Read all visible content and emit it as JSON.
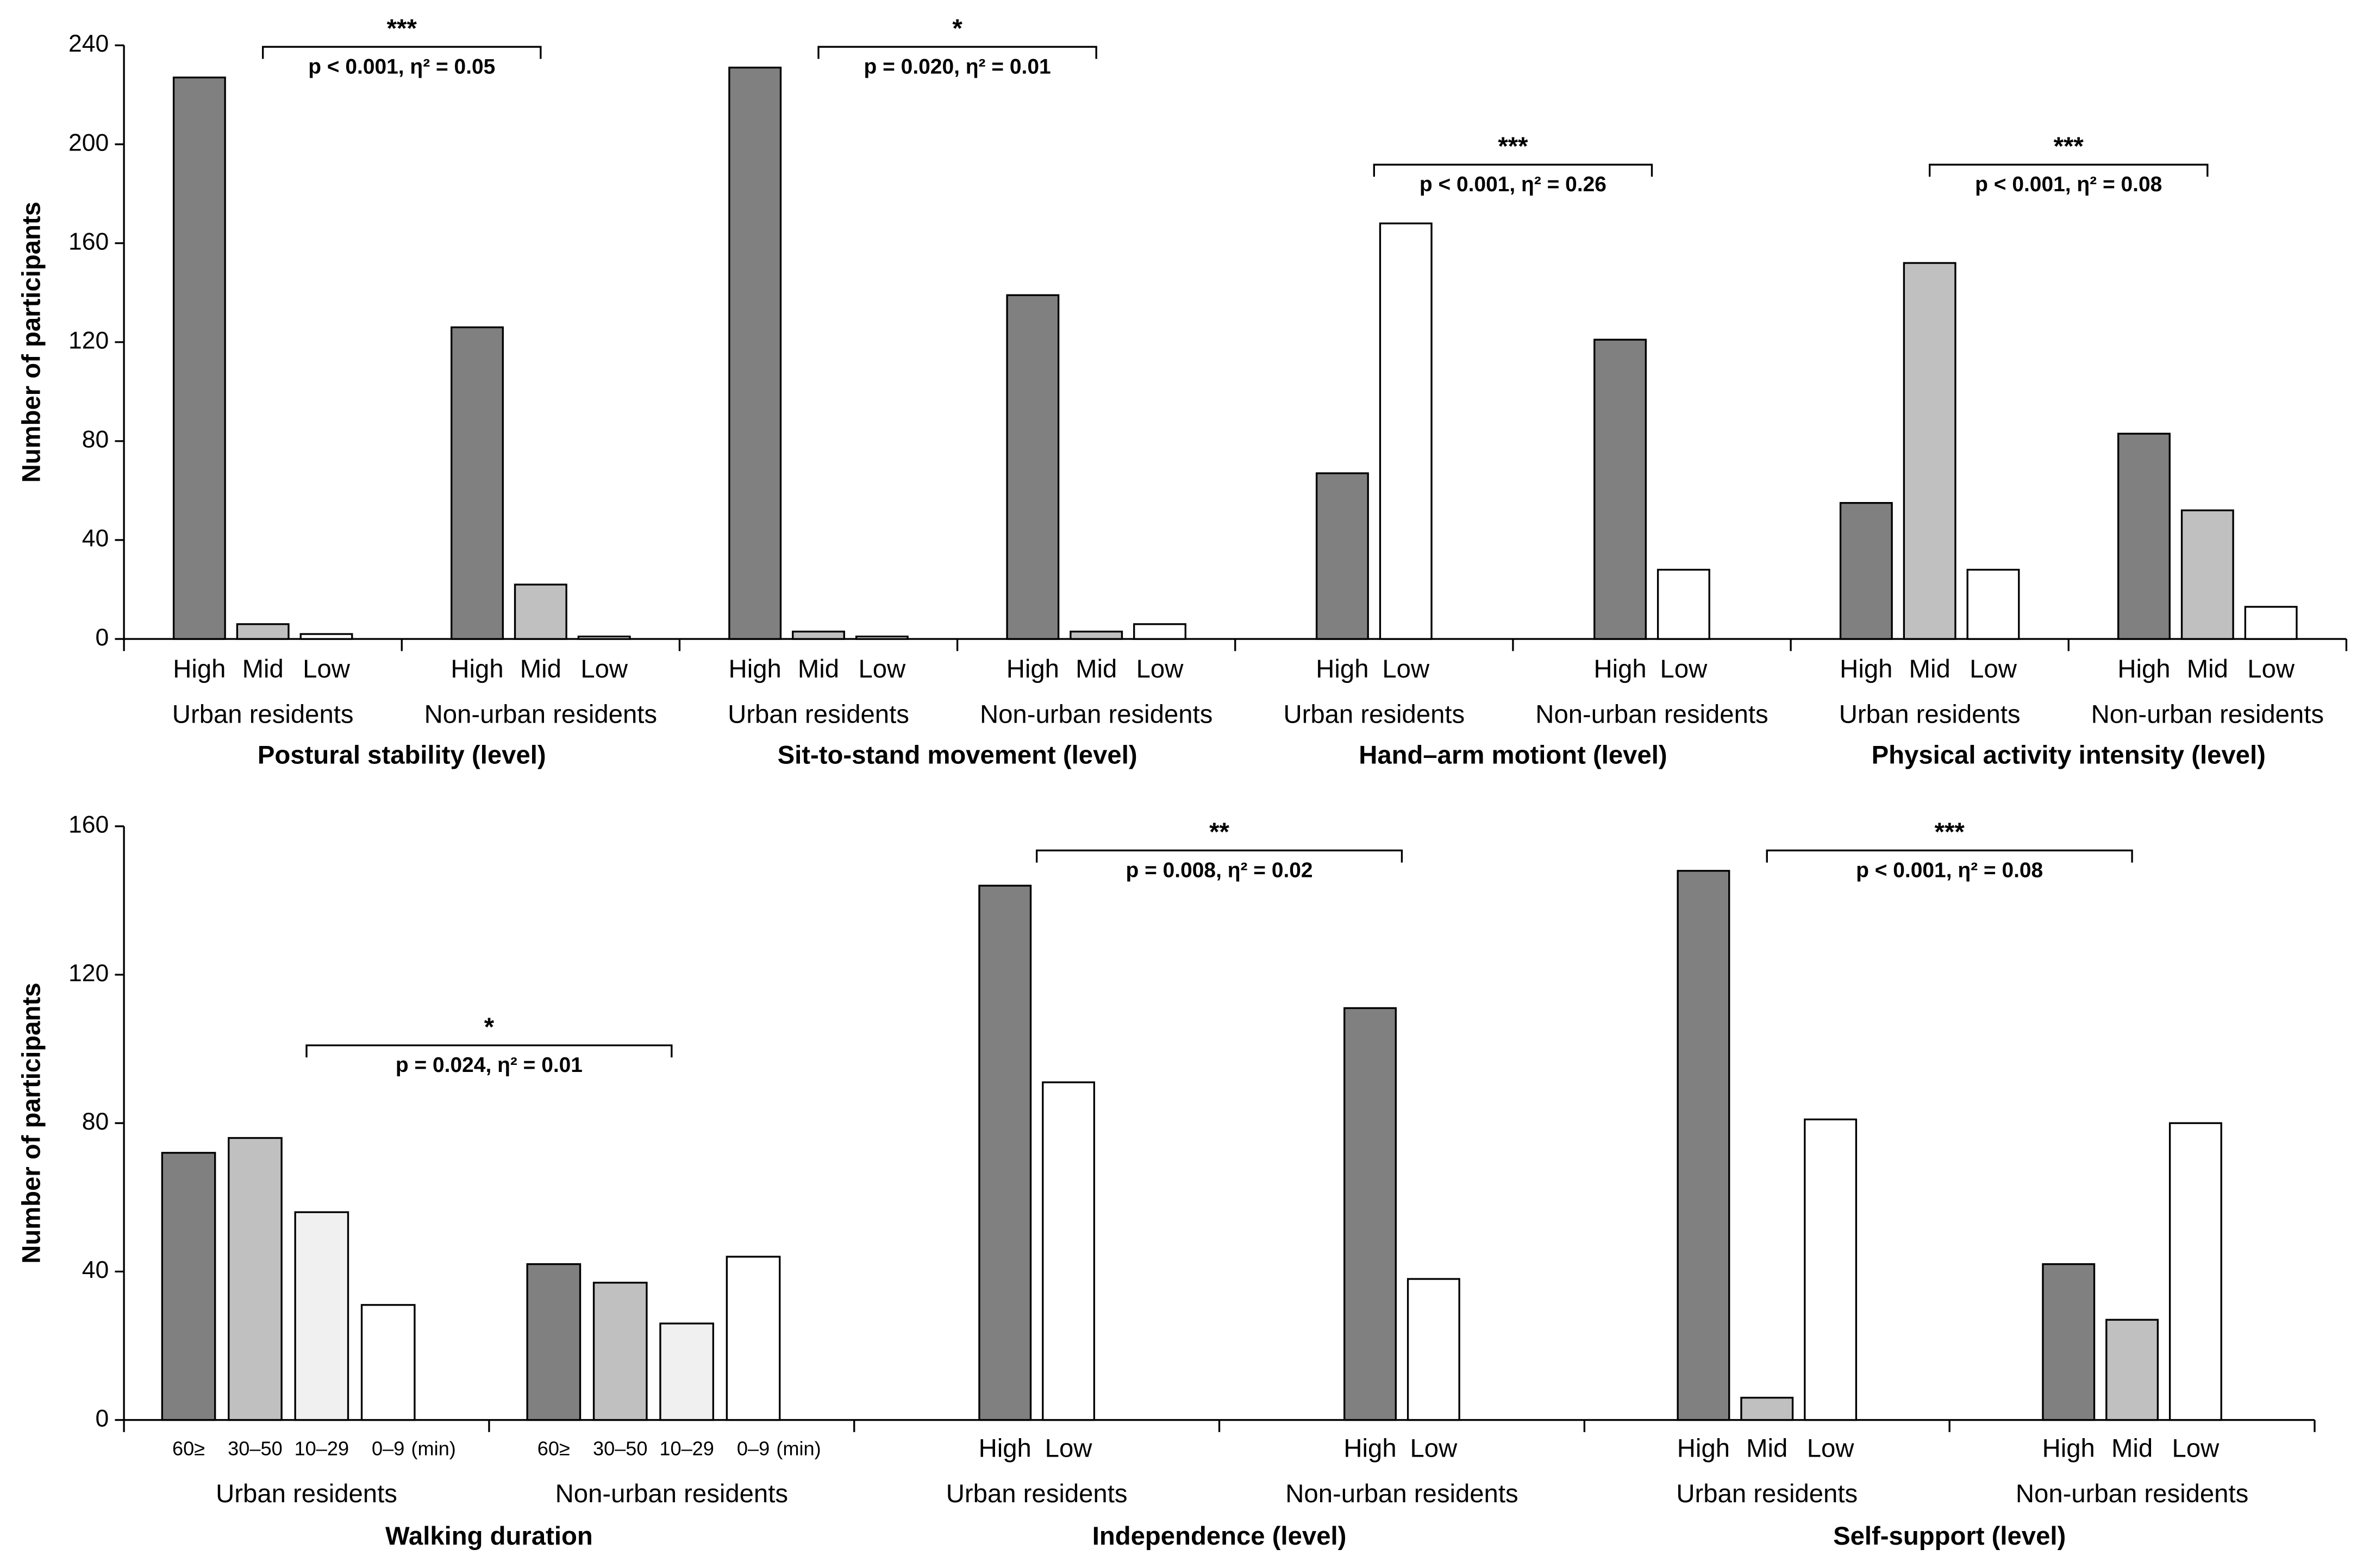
{
  "chart_data": [
    {
      "type": "bar",
      "ylabel": "Number of participants",
      "ylim": [
        0,
        240
      ],
      "yticks": [
        0,
        40,
        80,
        120,
        160,
        200,
        240
      ],
      "groups": [
        {
          "title": "Postural stability (level)",
          "annotation": {
            "stars": "***",
            "text": "p < 0.001, η² = 0.05"
          },
          "subgroups": [
            {
              "name": "Urban residents",
              "categories": [
                "High",
                "Mid",
                "Low"
              ],
              "values": [
                227,
                6,
                2
              ],
              "colors": [
                "#808080",
                "#c0c0c0",
                "#ffffff"
              ]
            },
            {
              "name": "Non-urban residents",
              "categories": [
                "High",
                "Mid",
                "Low"
              ],
              "values": [
                126,
                22,
                1
              ],
              "colors": [
                "#808080",
                "#c0c0c0",
                "#ffffff"
              ]
            }
          ]
        },
        {
          "title": "Sit-to-stand movement (level)",
          "annotation": {
            "stars": "*",
            "text": "p = 0.020, η² = 0.01"
          },
          "subgroups": [
            {
              "name": "Urban residents",
              "categories": [
                "High",
                "Mid",
                "Low"
              ],
              "values": [
                231,
                3,
                1
              ],
              "colors": [
                "#808080",
                "#c0c0c0",
                "#ffffff"
              ]
            },
            {
              "name": "Non-urban residents",
              "categories": [
                "High",
                "Mid",
                "Low"
              ],
              "values": [
                139,
                3,
                6
              ],
              "colors": [
                "#808080",
                "#c0c0c0",
                "#ffffff"
              ]
            }
          ]
        },
        {
          "title": "Hand–arm motiont (level)",
          "annotation": {
            "stars": "***",
            "text": "p < 0.001, η² = 0.26"
          },
          "subgroups": [
            {
              "name": "Urban residents",
              "categories": [
                "High",
                "Low"
              ],
              "values": [
                67,
                168
              ],
              "colors": [
                "#808080",
                "#ffffff"
              ]
            },
            {
              "name": "Non-urban residents",
              "categories": [
                "High",
                "Low"
              ],
              "values": [
                121,
                28
              ],
              "colors": [
                "#808080",
                "#ffffff"
              ]
            }
          ]
        },
        {
          "title": "Physical activity intensity (level)",
          "annotation": {
            "stars": "***",
            "text": "p < 0.001, η² = 0.08"
          },
          "subgroups": [
            {
              "name": "Urban residents",
              "categories": [
                "High",
                "Mid",
                "Low"
              ],
              "values": [
                55,
                152,
                28
              ],
              "colors": [
                "#808080",
                "#c0c0c0",
                "#ffffff"
              ]
            },
            {
              "name": "Non-urban residents",
              "categories": [
                "High",
                "Mid",
                "Low"
              ],
              "values": [
                83,
                52,
                13
              ],
              "colors": [
                "#808080",
                "#c0c0c0",
                "#ffffff"
              ]
            }
          ]
        }
      ]
    },
    {
      "type": "bar",
      "ylabel": "Number of participants",
      "ylim": [
        0,
        160
      ],
      "yticks": [
        0,
        40,
        80,
        120,
        160
      ],
      "groups": [
        {
          "title": "Walking duration",
          "annotation": {
            "stars": "*",
            "text": "p = 0.024, η² = 0.01"
          },
          "subgroups": [
            {
              "name": "Urban residents",
              "categories": [
                "60≥",
                "30–50",
                "10–29",
                "0–9"
              ],
              "unit": "(min)",
              "values": [
                72,
                76,
                56,
                31
              ],
              "colors": [
                "#808080",
                "#c0c0c0",
                "#f0f0f0",
                "#ffffff"
              ]
            },
            {
              "name": "Non-urban residents",
              "categories": [
                "60≥",
                "30–50",
                "10–29",
                "0–9"
              ],
              "unit": "(min)",
              "values": [
                42,
                37,
                26,
                44
              ],
              "colors": [
                "#808080",
                "#c0c0c0",
                "#f0f0f0",
                "#ffffff"
              ]
            }
          ]
        },
        {
          "title": "Independence (level)",
          "annotation": {
            "stars": "**",
            "text": "p = 0.008, η² = 0.02"
          },
          "subgroups": [
            {
              "name": "Urban residents",
              "categories": [
                "High",
                "Low"
              ],
              "values": [
                144,
                91
              ],
              "colors": [
                "#808080",
                "#ffffff"
              ]
            },
            {
              "name": "Non-urban residents",
              "categories": [
                "High",
                "Low"
              ],
              "values": [
                111,
                38
              ],
              "colors": [
                "#808080",
                "#ffffff"
              ]
            }
          ]
        },
        {
          "title": "Self-support (level)",
          "annotation": {
            "stars": "***",
            "text": "p < 0.001, η² = 0.08"
          },
          "subgroups": [
            {
              "name": "Urban residents",
              "categories": [
                "High",
                "Mid",
                "Low"
              ],
              "values": [
                148,
                6,
                81
              ],
              "colors": [
                "#808080",
                "#c0c0c0",
                "#ffffff"
              ]
            },
            {
              "name": "Non-urban residents",
              "categories": [
                "High",
                "Mid",
                "Low"
              ],
              "values": [
                42,
                27,
                80
              ],
              "colors": [
                "#808080",
                "#c0c0c0",
                "#ffffff"
              ]
            }
          ]
        }
      ]
    }
  ]
}
